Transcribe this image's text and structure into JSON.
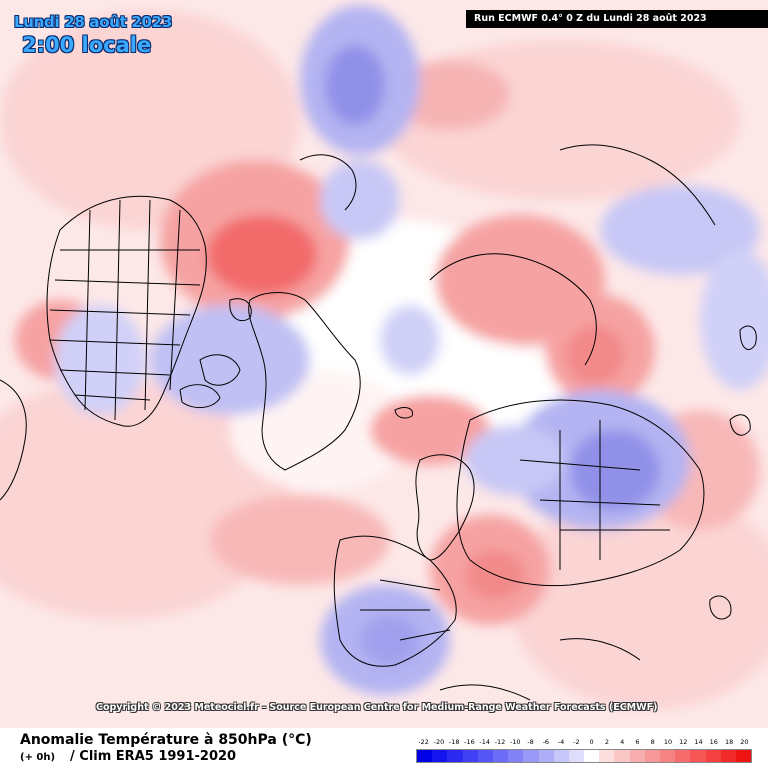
{
  "header": {
    "date": "Lundi 28 août 2023",
    "time": "2:00 locale",
    "run": "Run ECMWF 0.4° 0 Z du Lundi 28 août 2023"
  },
  "copyright": "Copyright © 2023 Meteociel.fr - Source European Centre for Medium-Range Weather Forecasts (ECMWF)",
  "footer": {
    "title": "Anomalie Température à 850hPa (°C)",
    "offset": "(+ 0h)",
    "climatology": "/ Clim ERA5 1991-2020"
  },
  "legend": {
    "labels": [
      "-22",
      "-20",
      "-18",
      "-16",
      "-14",
      "-12",
      "-10",
      "-8",
      "-6",
      "-4",
      "-2",
      "0",
      "2",
      "4",
      "6",
      "8",
      "10",
      "12",
      "14",
      "16",
      "18",
      "20"
    ],
    "colors": [
      "#0000e6",
      "#1414ee",
      "#2a2af2",
      "#4040f4",
      "#5656f6",
      "#6c6cf6",
      "#8282f6",
      "#9898f6",
      "#aeaef8",
      "#c6c6fa",
      "#dedefc",
      "#ffffff",
      "#fcdede",
      "#fac6c6",
      "#f8aeae",
      "#f69898",
      "#f68282",
      "#f66c6c",
      "#f65656",
      "#f44040",
      "#f22a2a",
      "#ee1414"
    ]
  },
  "map": {
    "anomaly_colors": {
      "warm_light": "#fbd4d4",
      "warm_mid": "#f6a2a2",
      "warm_strong": "#f26a6a",
      "cold_light": "#d8d8f8",
      "cold_mid": "#b4b4f2",
      "cold_strong": "#9090e8"
    }
  }
}
